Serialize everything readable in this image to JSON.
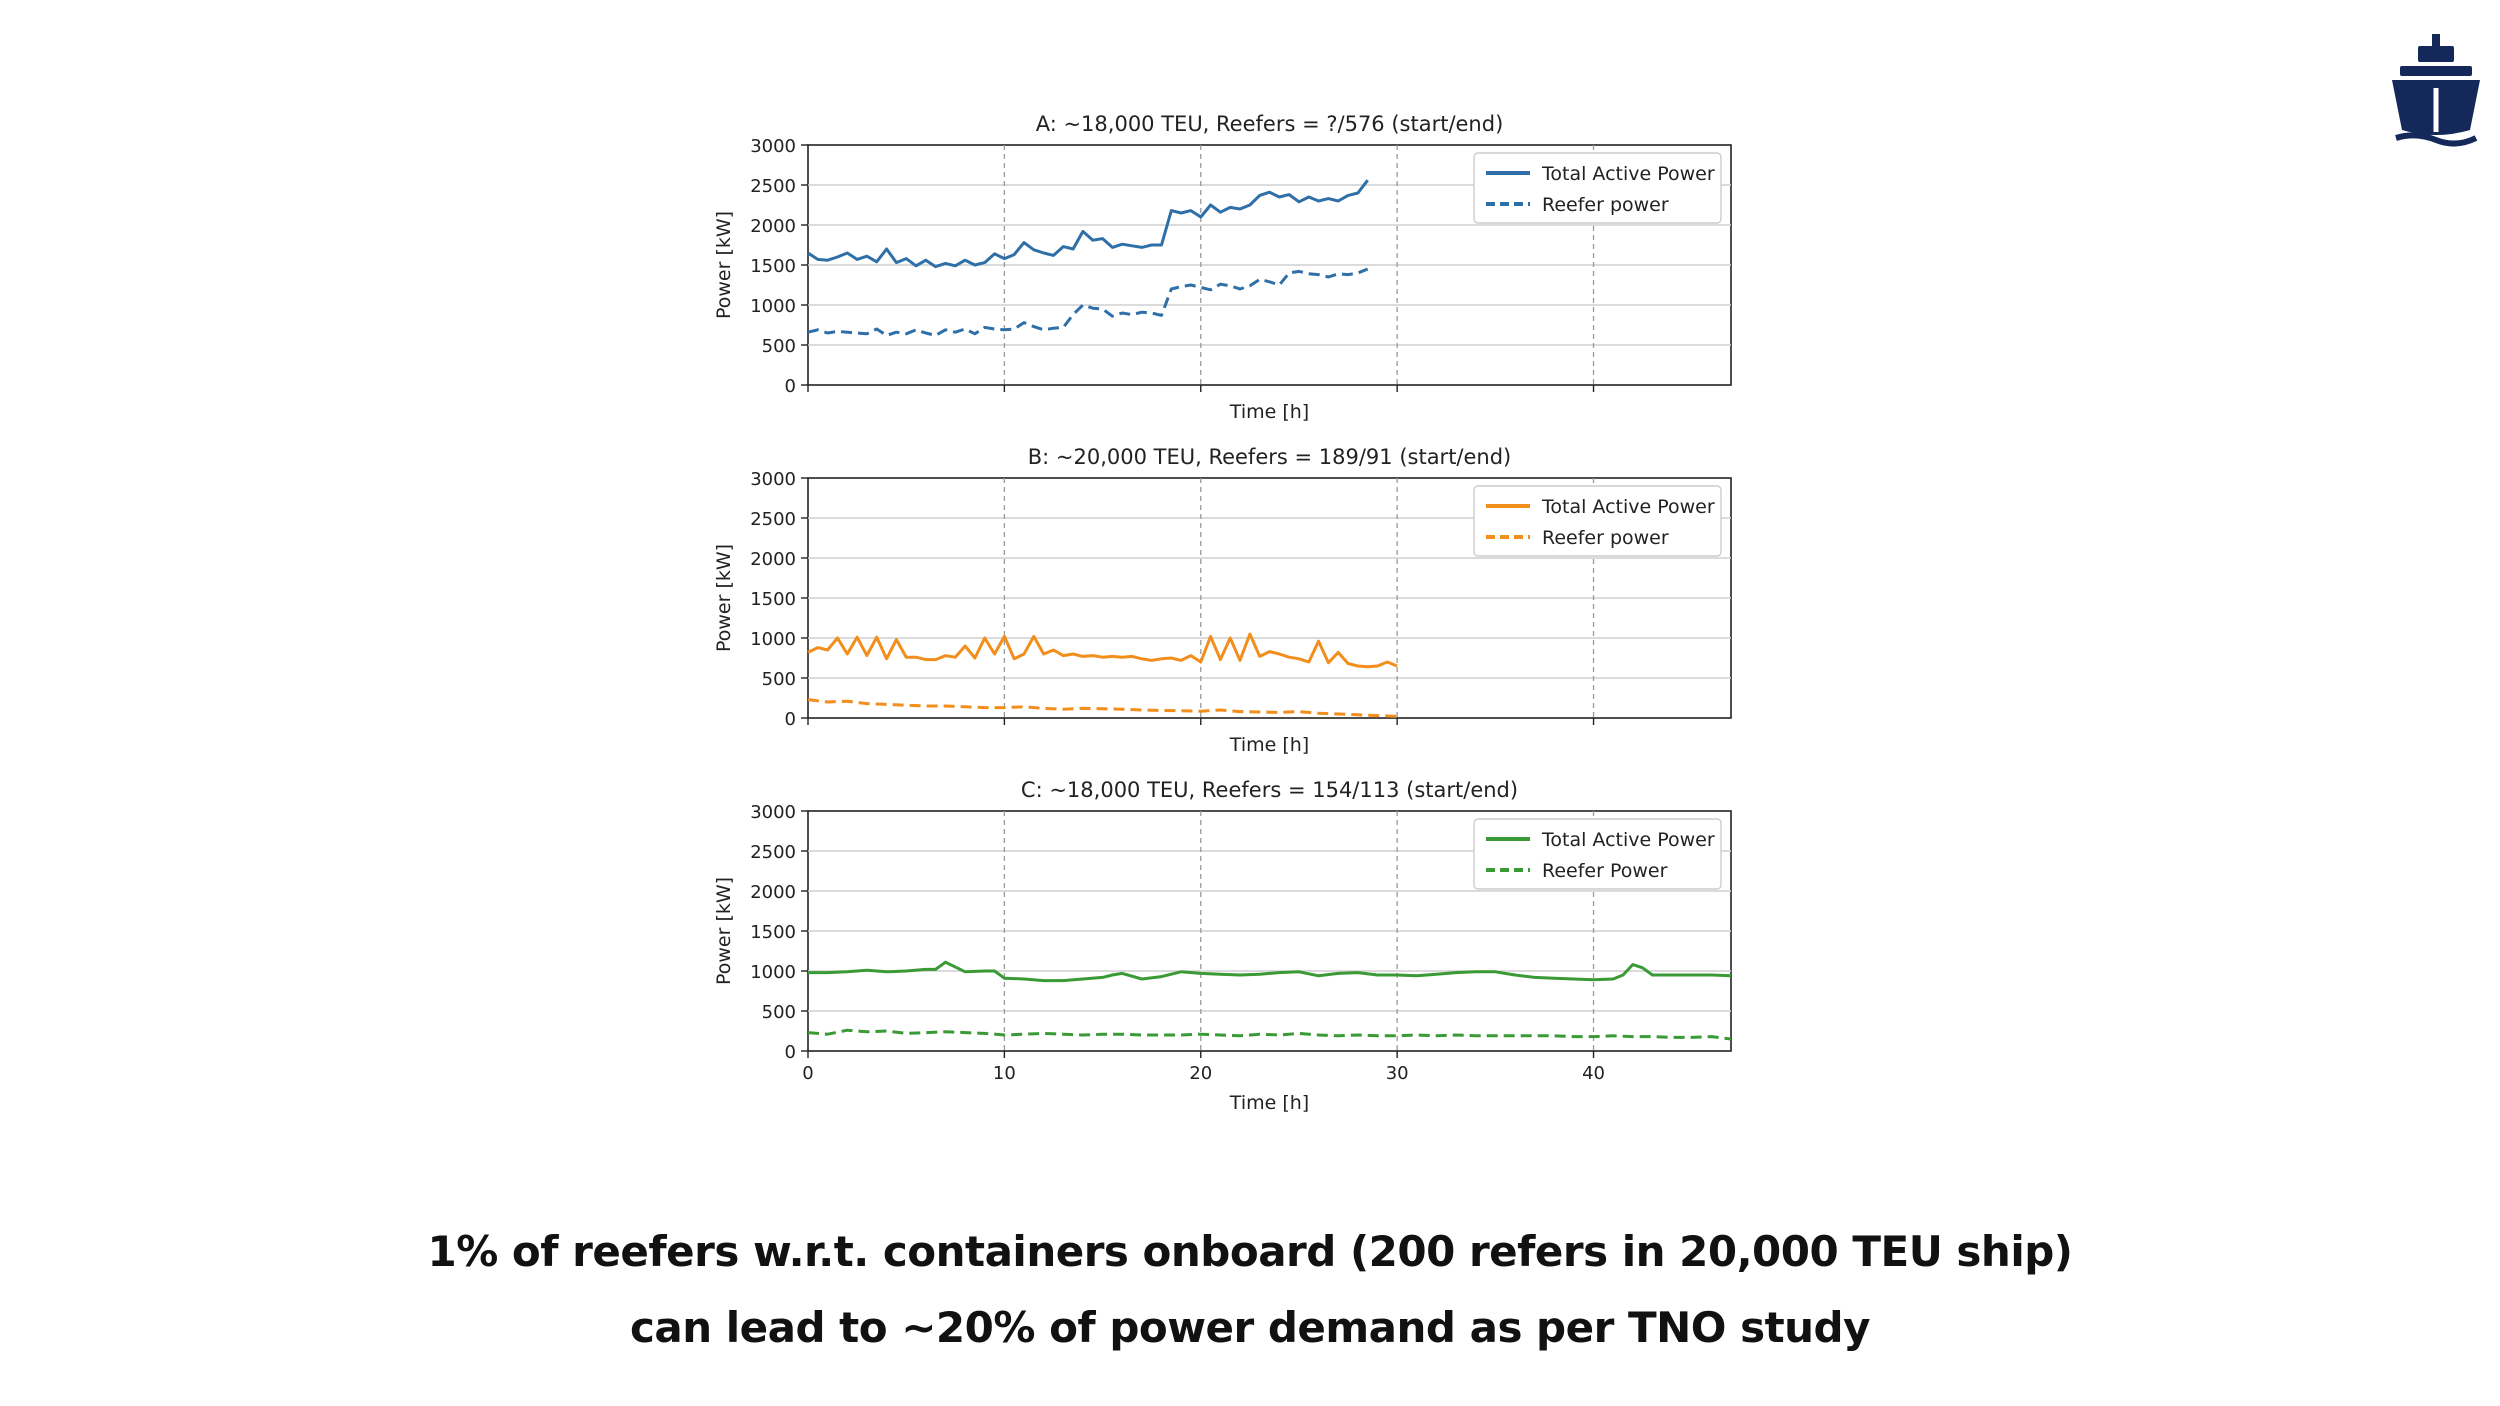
{
  "colors": {
    "blue": "#2f6fa8",
    "orange": "#f28e1c",
    "green": "#3a9a35",
    "logo": "#14285a"
  },
  "logo_icon": "ship-icon",
  "caption": {
    "line1": "1% of reefers w.r.t. containers onboard (200 refers in 20,000 TEU ship)",
    "line2": "can lead to ~20% of power demand as per TNO study"
  },
  "chart_data": [
    {
      "type": "line",
      "title": "A: ~18,000 TEU, Reefers = ?/576 (start/end)",
      "xlabel": "Time [h]",
      "ylabel": "Power [kW]",
      "xlim": [
        0,
        47
      ],
      "ylim": [
        0,
        3000
      ],
      "xticks": [
        0,
        10,
        20,
        30,
        40
      ],
      "xtick_labels": [
        "",
        "",
        "",
        "",
        ""
      ],
      "yticks": [
        "0",
        "500",
        "1000",
        "1500",
        "2000",
        "2500",
        "3000"
      ],
      "legend_position": "top-right",
      "color": "#2f6fa8",
      "series": [
        {
          "name": "Total Active Power",
          "style": "solid",
          "x": [
            0,
            0.5,
            1,
            1.5,
            2,
            2.5,
            3,
            3.5,
            4,
            4.5,
            5,
            5.5,
            6,
            6.5,
            7,
            7.5,
            8,
            8.5,
            9,
            9.5,
            10,
            10.5,
            11,
            11.5,
            12,
            12.5,
            13,
            13.5,
            14,
            14.5,
            15,
            15.5,
            16,
            16.5,
            17,
            17.5,
            18,
            18.5,
            19,
            19.5,
            20,
            20.5,
            21,
            21.5,
            22,
            22.5,
            23,
            23.5,
            24,
            24.5,
            25,
            25.5,
            26,
            26.5,
            27,
            27.5,
            28,
            28.5
          ],
          "values": [
            1650,
            1570,
            1560,
            1600,
            1650,
            1570,
            1610,
            1540,
            1700,
            1530,
            1580,
            1490,
            1560,
            1480,
            1520,
            1490,
            1560,
            1500,
            1530,
            1640,
            1580,
            1630,
            1780,
            1690,
            1650,
            1620,
            1730,
            1700,
            1920,
            1810,
            1830,
            1720,
            1760,
            1740,
            1720,
            1750,
            1750,
            2180,
            2150,
            2180,
            2100,
            2250,
            2160,
            2220,
            2200,
            2250,
            2370,
            2410,
            2350,
            2380,
            2290,
            2350,
            2300,
            2330,
            2300,
            2370,
            2400,
            2560
          ]
        },
        {
          "name": "Reefer power",
          "style": "dashed",
          "x": [
            0,
            0.5,
            1,
            1.5,
            2,
            2.5,
            3,
            3.5,
            4,
            4.5,
            5,
            5.5,
            6,
            6.5,
            7,
            7.5,
            8,
            8.5,
            9,
            9.5,
            10,
            10.5,
            11,
            11.5,
            12,
            12.5,
            13,
            13.5,
            14,
            14.5,
            15,
            15.5,
            16,
            16.5,
            17,
            17.5,
            18,
            18.5,
            19,
            19.5,
            20,
            20.5,
            21,
            21.5,
            22,
            22.5,
            23,
            23.5,
            24,
            24.5,
            25,
            25.5,
            26,
            26.5,
            27,
            27.5,
            28,
            28.5
          ],
          "values": [
            660,
            690,
            650,
            670,
            660,
            650,
            640,
            700,
            620,
            660,
            640,
            690,
            650,
            620,
            690,
            660,
            700,
            640,
            720,
            700,
            690,
            700,
            780,
            730,
            690,
            710,
            720,
            880,
            1000,
            960,
            950,
            860,
            900,
            880,
            910,
            900,
            870,
            1200,
            1230,
            1250,
            1220,
            1190,
            1260,
            1240,
            1200,
            1240,
            1320,
            1290,
            1250,
            1400,
            1420,
            1390,
            1380,
            1350,
            1390,
            1380,
            1400,
            1450
          ]
        }
      ]
    },
    {
      "type": "line",
      "title": "B: ~20,000 TEU, Reefers = 189/91 (start/end)",
      "xlabel": "Time [h]",
      "ylabel": "Power [kW]",
      "xlim": [
        0,
        47
      ],
      "ylim": [
        0,
        3000
      ],
      "xticks": [
        0,
        10,
        20,
        30,
        40
      ],
      "xtick_labels": [
        "",
        "",
        "",
        "",
        ""
      ],
      "yticks": [
        "0",
        "500",
        "1000",
        "1500",
        "2000",
        "2500",
        "3000"
      ],
      "legend_position": "top-right",
      "color": "#f28e1c",
      "series": [
        {
          "name": "Total Active Power",
          "style": "solid",
          "x": [
            0,
            0.5,
            1,
            1.5,
            2,
            2.5,
            3,
            3.5,
            4,
            4.5,
            5,
            5.5,
            6,
            6.5,
            7,
            7.5,
            8,
            8.5,
            9,
            9.5,
            10,
            10.5,
            11,
            11.5,
            12,
            12.5,
            13,
            13.5,
            14,
            14.5,
            15,
            15.5,
            16,
            16.5,
            17,
            17.5,
            18,
            18.5,
            19,
            19.5,
            20,
            20.5,
            21,
            21.5,
            22,
            22.5,
            23,
            23.5,
            24,
            24.5,
            25,
            25.5,
            26,
            26.5,
            27,
            27.5,
            28,
            28.5,
            29,
            29.5,
            30
          ],
          "values": [
            820,
            880,
            850,
            1000,
            800,
            1010,
            780,
            1010,
            740,
            980,
            760,
            760,
            730,
            730,
            780,
            760,
            900,
            750,
            1000,
            800,
            1020,
            740,
            800,
            1020,
            800,
            850,
            780,
            800,
            770,
            780,
            760,
            770,
            760,
            770,
            740,
            720,
            740,
            750,
            720,
            780,
            700,
            1020,
            730,
            1000,
            720,
            1050,
            770,
            830,
            800,
            760,
            740,
            700,
            960,
            690,
            820,
            680,
            650,
            640,
            650,
            700,
            650
          ]
        },
        {
          "name": "Reefer power",
          "style": "dashed",
          "x": [
            0,
            1,
            2,
            3,
            4,
            5,
            6,
            7,
            8,
            9,
            10,
            11,
            12,
            13,
            14,
            15,
            16,
            17,
            18,
            19,
            20,
            21,
            22,
            23,
            24,
            25,
            26,
            27,
            28,
            29,
            30
          ],
          "values": [
            230,
            200,
            210,
            180,
            170,
            160,
            150,
            150,
            140,
            130,
            130,
            140,
            120,
            110,
            120,
            115,
            110,
            100,
            95,
            90,
            85,
            100,
            80,
            75,
            70,
            80,
            60,
            50,
            40,
            30,
            20
          ]
        }
      ]
    },
    {
      "type": "line",
      "title": "C: ~18,000 TEU, Reefers = 154/113 (start/end)",
      "xlabel": "Time [h]",
      "ylabel": "Power [kW]",
      "xlim": [
        0,
        47
      ],
      "ylim": [
        0,
        3000
      ],
      "xticks": [
        0,
        10,
        20,
        30,
        40
      ],
      "xtick_labels": [
        "0",
        "10",
        "20",
        "30",
        "40"
      ],
      "yticks": [
        "0",
        "500",
        "1000",
        "1500",
        "2000",
        "2500",
        "3000"
      ],
      "legend_position": "top-right",
      "color": "#3a9a35",
      "series": [
        {
          "name": "Total Active Power",
          "style": "solid",
          "x": [
            0,
            1,
            2,
            3,
            4,
            5,
            6,
            6.5,
            7,
            8,
            9,
            9.5,
            10,
            11,
            12,
            13,
            14,
            15,
            15.5,
            16,
            17,
            18,
            19,
            20,
            21,
            22,
            23,
            24,
            25,
            26,
            27,
            28,
            29,
            30,
            31,
            32,
            33,
            34,
            35,
            36,
            37,
            38,
            39,
            40,
            41,
            41.5,
            42,
            42.5,
            43,
            44,
            45,
            46,
            47
          ],
          "values": [
            980,
            980,
            990,
            1010,
            990,
            1000,
            1020,
            1020,
            1110,
            990,
            1000,
            1000,
            910,
            900,
            880,
            880,
            900,
            920,
            950,
            970,
            900,
            930,
            990,
            970,
            960,
            950,
            960,
            980,
            990,
            940,
            970,
            980,
            950,
            950,
            940,
            960,
            980,
            990,
            990,
            950,
            920,
            910,
            900,
            890,
            900,
            950,
            1080,
            1040,
            950,
            950,
            950,
            950,
            940
          ]
        },
        {
          "name": "Reefer Power",
          "style": "dashed",
          "x": [
            0,
            1,
            2,
            3,
            4,
            5,
            6,
            7,
            8,
            9,
            10,
            11,
            12,
            13,
            14,
            15,
            16,
            17,
            18,
            19,
            20,
            21,
            22,
            23,
            24,
            25,
            26,
            27,
            28,
            29,
            30,
            31,
            32,
            33,
            34,
            35,
            36,
            37,
            38,
            39,
            40,
            41,
            42,
            43,
            44,
            45,
            46,
            47
          ],
          "values": [
            230,
            210,
            260,
            240,
            250,
            220,
            230,
            240,
            230,
            220,
            200,
            210,
            220,
            210,
            200,
            210,
            210,
            200,
            200,
            200,
            210,
            200,
            190,
            210,
            200,
            220,
            200,
            190,
            200,
            190,
            190,
            200,
            190,
            200,
            190,
            190,
            190,
            190,
            190,
            180,
            180,
            190,
            180,
            180,
            170,
            170,
            180,
            150
          ]
        }
      ]
    }
  ]
}
